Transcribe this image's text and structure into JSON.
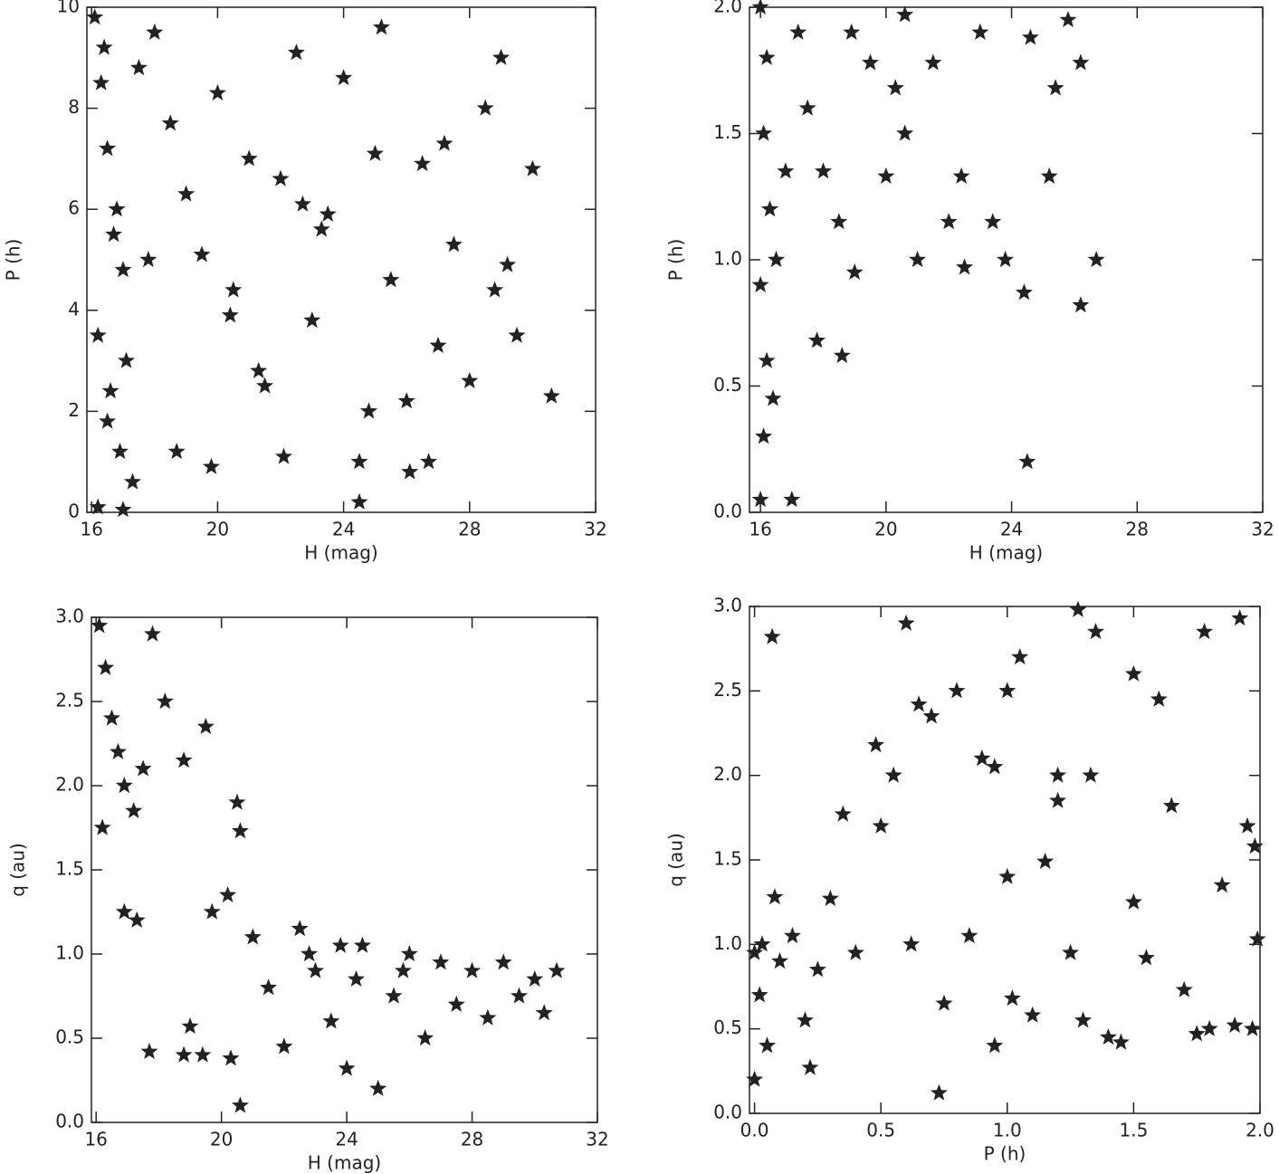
{
  "chart_data": [
    {
      "type": "scatter",
      "xlabel": "H (mag)",
      "ylabel": "P (h)",
      "color": "#222222",
      "xlim": [
        15.85,
        32
      ],
      "ylim": [
        0,
        10
      ],
      "xticks": [
        16,
        20,
        24,
        28,
        32
      ],
      "yticks": [
        0,
        2,
        4,
        6,
        8,
        10
      ],
      "x": [
        16.1,
        16.3,
        16.5,
        16.8,
        17.0,
        16.2,
        16.6,
        16.9,
        17.3,
        16.4,
        16.7,
        17.1,
        16.2,
        16.5,
        17.5,
        18.0,
        18.5,
        19.0,
        19.5,
        20.0,
        20.5,
        21.0,
        21.5,
        22.0,
        22.5,
        23.0,
        23.5,
        24.0,
        24.5,
        25.0,
        25.5,
        26.0,
        26.5,
        27.0,
        27.5,
        28.0,
        28.5,
        29.0,
        29.5,
        30.0,
        30.6,
        29.2,
        28.8,
        26.1,
        24.5,
        22.1,
        19.8,
        21.3,
        23.3,
        25.2,
        27.2,
        18.7,
        20.4,
        22.7,
        24.8,
        26.7,
        17.8,
        17.0
      ],
      "values": [
        9.8,
        8.5,
        7.2,
        6.0,
        4.8,
        3.5,
        2.4,
        1.2,
        0.6,
        9.2,
        5.5,
        3.0,
        0.1,
        1.8,
        8.8,
        9.5,
        7.7,
        6.3,
        5.1,
        8.3,
        4.4,
        7.0,
        2.5,
        6.6,
        9.1,
        3.8,
        5.9,
        8.6,
        1.0,
        7.1,
        4.6,
        2.2,
        6.9,
        3.3,
        5.3,
        2.6,
        8.0,
        9.0,
        3.5,
        6.8,
        2.3,
        4.9,
        4.4,
        0.8,
        0.2,
        1.1,
        0.9,
        2.8,
        5.6,
        9.6,
        7.3,
        1.2,
        3.9,
        6.1,
        2.0,
        1.0,
        5.0,
        0.05
      ]
    },
    {
      "type": "scatter",
      "xlabel": "H (mag)",
      "ylabel": "P (h)",
      "color": "#222222",
      "xlim": [
        15.65,
        32
      ],
      "ylim": [
        0,
        2
      ],
      "xticks": [
        16,
        20,
        24,
        28,
        32
      ],
      "yticks": [
        {
          "value": 0,
          "label": "0.0"
        },
        0.5,
        {
          "value": 1,
          "label": "1.0"
        },
        1.5,
        {
          "value": 2,
          "label": "2.0"
        }
      ],
      "x": [
        16.0,
        16.1,
        16.2,
        16.0,
        16.3,
        16.1,
        16.2,
        16.0,
        16.4,
        16.5,
        16.8,
        17.0,
        17.2,
        17.5,
        17.8,
        18.0,
        18.5,
        18.6,
        19.0,
        19.5,
        20.0,
        20.3,
        20.6,
        21.0,
        21.5,
        22.0,
        22.5,
        23.0,
        23.4,
        23.8,
        24.4,
        24.5,
        24.6,
        25.2,
        25.4,
        25.8,
        26.2,
        26.7,
        26.2,
        22.4,
        20.6,
        18.9
      ],
      "values": [
        0.05,
        0.3,
        0.6,
        0.9,
        1.2,
        1.5,
        1.8,
        2.0,
        0.45,
        1.0,
        1.35,
        0.05,
        1.9,
        1.6,
        0.68,
        1.35,
        1.15,
        0.62,
        0.95,
        1.78,
        1.33,
        1.68,
        1.5,
        1.0,
        1.78,
        1.15,
        0.97,
        1.9,
        1.15,
        1.0,
        0.87,
        0.2,
        1.88,
        1.33,
        1.68,
        1.95,
        0.82,
        1.0,
        1.78,
        1.33,
        1.97,
        1.9
      ]
    },
    {
      "type": "scatter",
      "xlabel": "H (mag)",
      "ylabel": "q (au)",
      "color": "#222222",
      "xlim": [
        15.85,
        32
      ],
      "ylim": [
        0,
        3
      ],
      "xticks": [
        16,
        20,
        24,
        28,
        32
      ],
      "yticks": [
        {
          "value": 0,
          "label": "0.0"
        },
        0.5,
        {
          "value": 1,
          "label": "1.0"
        },
        1.5,
        {
          "value": 2,
          "label": "2.0"
        },
        2.5,
        {
          "value": 3,
          "label": "3.0"
        }
      ],
      "x": [
        16.1,
        16.3,
        16.5,
        16.7,
        16.9,
        17.2,
        16.2,
        17.5,
        17.8,
        18.2,
        18.8,
        19.5,
        20.5,
        20.6,
        16.9,
        17.3,
        17.7,
        18.8,
        19.0,
        19.4,
        20.3,
        20.6,
        19.7,
        20.2,
        21.0,
        21.5,
        22.0,
        22.5,
        23.0,
        23.5,
        24.0,
        24.5,
        25.0,
        25.5,
        26.0,
        26.5,
        27.0,
        27.5,
        28.0,
        28.5,
        29.0,
        29.5,
        30.0,
        30.7,
        30.3,
        24.3,
        22.8,
        25.8,
        23.8
      ],
      "values": [
        2.95,
        2.7,
        2.4,
        2.2,
        2.0,
        1.85,
        1.75,
        2.1,
        2.9,
        2.5,
        2.15,
        2.35,
        1.9,
        1.73,
        1.25,
        1.2,
        0.42,
        0.4,
        0.57,
        0.4,
        0.38,
        0.1,
        1.25,
        1.35,
        1.1,
        0.8,
        0.45,
        1.15,
        0.9,
        0.6,
        0.32,
        1.05,
        0.2,
        0.75,
        1.0,
        0.5,
        0.95,
        0.7,
        0.9,
        0.62,
        0.95,
        0.75,
        0.85,
        0.9,
        0.65,
        0.85,
        1.0,
        0.9,
        1.05
      ]
    },
    {
      "type": "scatter",
      "xlabel": "P (h)",
      "ylabel": "q (au)",
      "color": "#222222",
      "xlim": [
        -0.02,
        2.0
      ],
      "ylim": [
        0,
        3
      ],
      "xticks": [
        {
          "value": 0,
          "label": "0.0"
        },
        0.5,
        {
          "value": 1,
          "label": "1.0"
        },
        1.5,
        {
          "value": 2,
          "label": "2.0"
        }
      ],
      "yticks": [
        {
          "value": 0,
          "label": "0.0"
        },
        0.5,
        {
          "value": 1,
          "label": "1.0"
        },
        1.5,
        {
          "value": 2,
          "label": "2.0"
        },
        2.5,
        {
          "value": 3,
          "label": "3.0"
        }
      ],
      "x": [
        0.0,
        0.02,
        0.03,
        0.05,
        0.0,
        0.07,
        0.08,
        0.1,
        0.15,
        0.2,
        0.22,
        0.25,
        0.3,
        0.35,
        0.4,
        0.48,
        0.5,
        0.55,
        0.6,
        0.62,
        0.65,
        0.7,
        0.73,
        0.75,
        0.8,
        0.85,
        0.9,
        0.95,
        1.0,
        1.0,
        1.02,
        1.05,
        1.1,
        1.15,
        1.2,
        1.25,
        1.28,
        1.3,
        1.33,
        1.35,
        1.4,
        1.45,
        1.5,
        1.5,
        1.55,
        1.6,
        1.65,
        1.7,
        1.75,
        1.78,
        1.8,
        1.85,
        1.9,
        1.92,
        1.95,
        1.97,
        1.98,
        1.99,
        1.2,
        0.95
      ],
      "values": [
        0.95,
        0.7,
        1.0,
        0.4,
        0.2,
        2.82,
        1.28,
        0.9,
        1.05,
        0.55,
        0.27,
        0.85,
        1.27,
        1.77,
        0.95,
        2.18,
        1.7,
        2.0,
        2.9,
        1.0,
        2.42,
        2.35,
        0.12,
        0.65,
        2.5,
        1.05,
        2.1,
        0.4,
        2.5,
        1.4,
        0.68,
        2.7,
        0.58,
        1.49,
        2.0,
        0.95,
        2.98,
        0.55,
        2.0,
        2.85,
        0.45,
        0.42,
        2.6,
        1.25,
        0.92,
        2.45,
        1.82,
        0.73,
        0.47,
        2.85,
        0.5,
        1.35,
        0.52,
        2.93,
        1.7,
        0.5,
        1.58,
        1.03,
        1.85,
        2.05
      ]
    }
  ]
}
